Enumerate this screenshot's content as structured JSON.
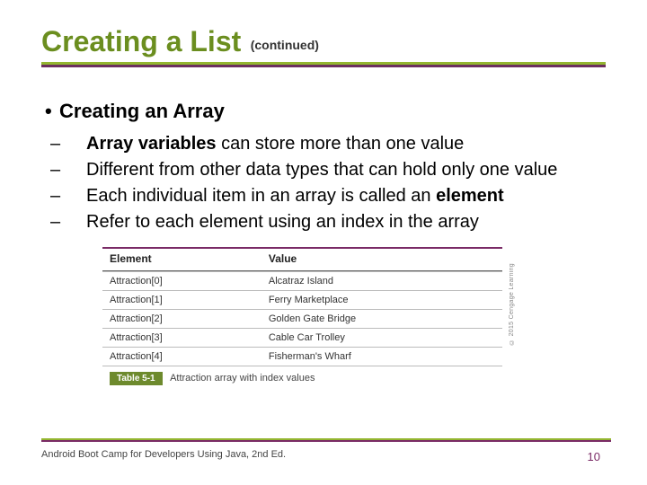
{
  "colors": {
    "title": "#6b8e1f",
    "rule_green": "#93b52f",
    "rule_purple": "#6b2e5f",
    "rule_purple2": "#7a2b66",
    "table_top": "#7a2b66",
    "caption_bg": "#6d8a2d",
    "pagenum": "#7a2b66"
  },
  "title": "Creating a List",
  "subtitle": "(continued)",
  "heading": "Creating an Array",
  "bullets": [
    {
      "pre": "",
      "bold": "Array variables",
      "post": " can store more than one value"
    },
    {
      "pre": "Different from other data types that can hold only one value",
      "bold": "",
      "post": ""
    },
    {
      "pre": "Each individual item in an array is called an ",
      "bold": "element",
      "post": ""
    },
    {
      "pre": "Refer to each element using an index in the array",
      "bold": "",
      "post": ""
    }
  ],
  "table": {
    "columns": [
      "Element",
      "Value"
    ],
    "rows": [
      [
        "Attraction[0]",
        "Alcatraz Island"
      ],
      [
        "Attraction[1]",
        "Ferry Marketplace"
      ],
      [
        "Attraction[2]",
        "Golden Gate Bridge"
      ],
      [
        "Attraction[3]",
        "Cable Car Trolley"
      ],
      [
        "Attraction[4]",
        "Fisherman's Wharf"
      ]
    ],
    "caption_label": "Table 5-1",
    "caption_text": "Attraction array with index values",
    "copyright": "© 2015 Cengage Learning"
  },
  "footer": "Android Boot Camp for Developers Using Java, 2nd Ed.",
  "page": "10"
}
